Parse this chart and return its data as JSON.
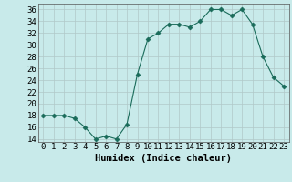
{
  "x": [
    0,
    1,
    2,
    3,
    4,
    5,
    6,
    7,
    8,
    9,
    10,
    11,
    12,
    13,
    14,
    15,
    16,
    17,
    18,
    19,
    20,
    21,
    22,
    23
  ],
  "y": [
    18,
    18,
    18,
    17.5,
    16,
    14,
    14.5,
    14,
    16.5,
    25,
    31,
    32,
    33.5,
    33.5,
    33,
    34,
    36,
    36,
    35,
    36,
    33.5,
    28,
    24.5,
    23
  ],
  "line_color": "#1a6b5a",
  "marker": "D",
  "marker_size": 2.5,
  "bg_color": "#c8eaea",
  "grid_color": "#b0c8c8",
  "xlabel": "Humidex (Indice chaleur)",
  "xlabel_fontsize": 7.5,
  "xlim": [
    -0.5,
    23.5
  ],
  "ylim": [
    13.5,
    37
  ],
  "yticks": [
    14,
    16,
    18,
    20,
    22,
    24,
    26,
    28,
    30,
    32,
    34,
    36
  ],
  "xtick_labels": [
    "0",
    "1",
    "2",
    "3",
    "4",
    "5",
    "6",
    "7",
    "8",
    "9",
    "10",
    "11",
    "12",
    "13",
    "14",
    "15",
    "16",
    "17",
    "18",
    "19",
    "20",
    "21",
    "22",
    "23"
  ],
  "tick_fontsize": 6.5
}
